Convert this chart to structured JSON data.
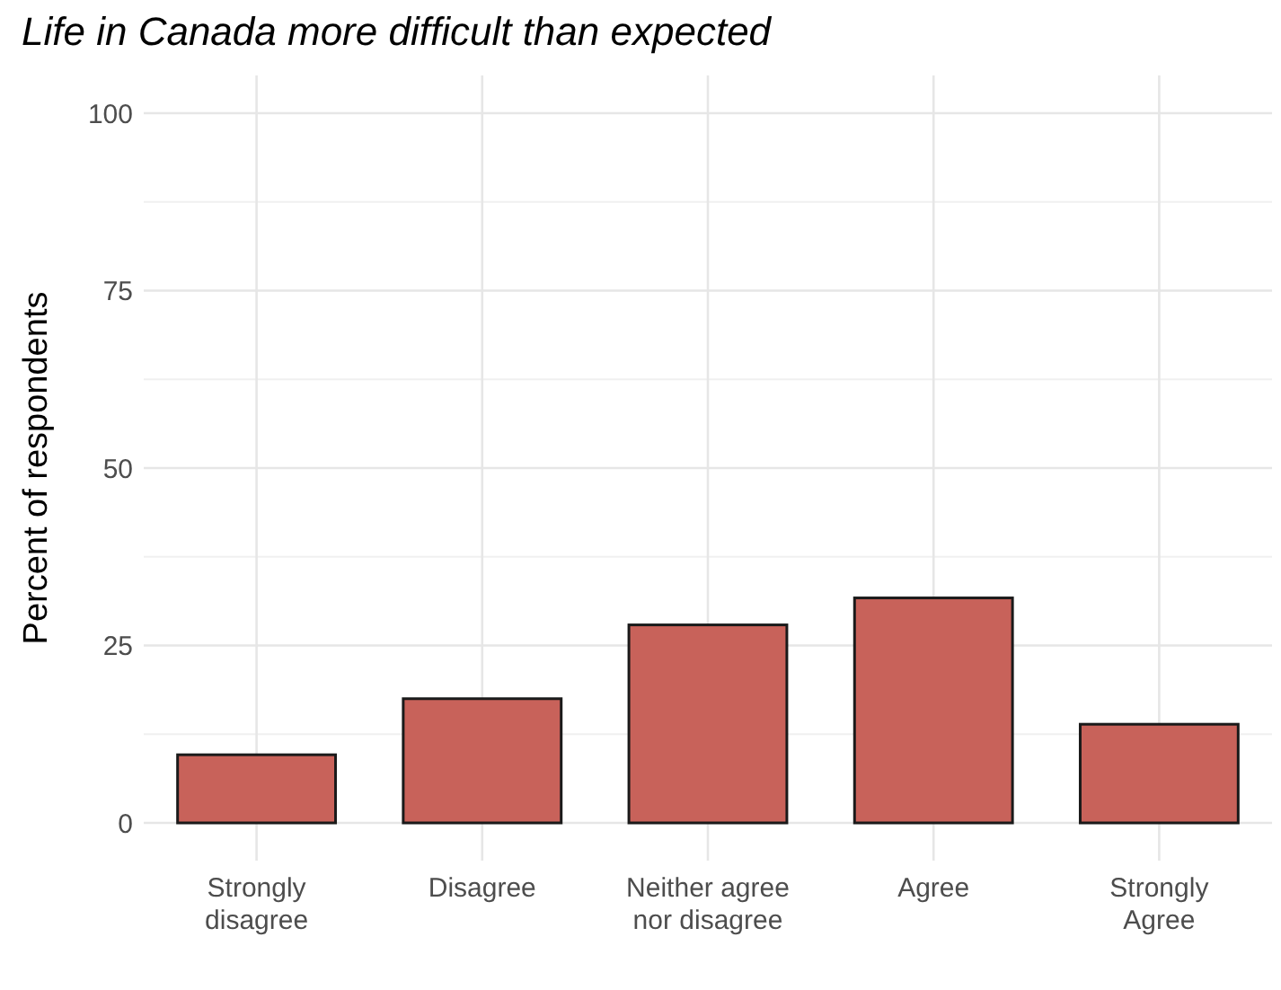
{
  "chart_data": {
    "type": "bar",
    "title": "Life in Canada more difficult than expected",
    "ylabel": "Percent of respondents",
    "categories": [
      "Strongly disagree",
      "Disagree",
      "Neither agree nor disagree",
      "Agree",
      "Strongly Agree"
    ],
    "values": [
      9.6,
      17.5,
      27.9,
      31.7,
      13.9
    ],
    "color": "#c8625a",
    "ylim": [
      0,
      100
    ],
    "yticks": [
      0,
      25,
      50,
      75,
      100
    ],
    "grid": true
  }
}
